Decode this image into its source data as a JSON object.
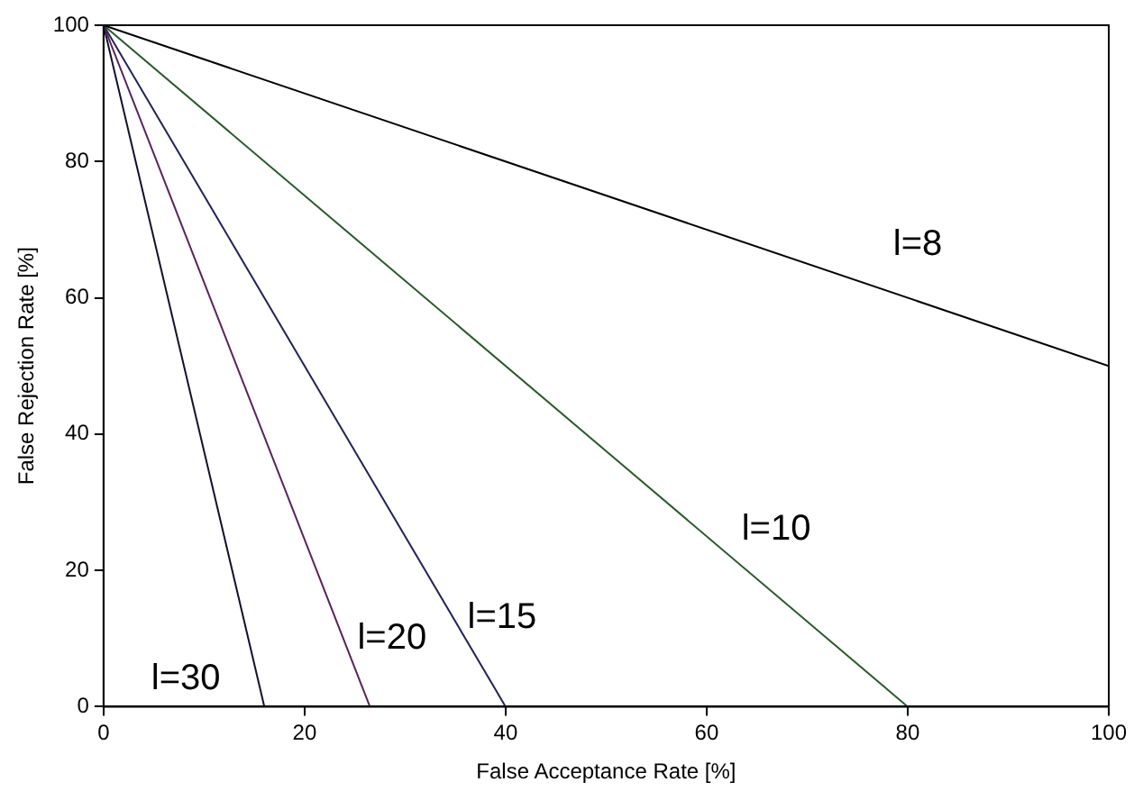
{
  "chart_data": {
    "type": "line",
    "xlabel": "False Acceptance Rate [%]",
    "ylabel": "False Rejection Rate [%]",
    "xlim": [
      0,
      100
    ],
    "ylim": [
      0,
      100
    ],
    "xticks": [
      0,
      20,
      40,
      60,
      80,
      100
    ],
    "yticks": [
      0,
      20,
      40,
      60,
      80,
      100
    ],
    "grid": false,
    "legend": false,
    "marker": "none",
    "line_style": "solid",
    "series": [
      {
        "name": "l=8",
        "color": "#000000",
        "x": [
          0,
          100
        ],
        "values": [
          100,
          50
        ]
      },
      {
        "name": "l=10",
        "color": "#2a5a2a",
        "x": [
          0,
          80
        ],
        "values": [
          100,
          0
        ]
      },
      {
        "name": "l=15",
        "color": "#22225a",
        "x": [
          0,
          40
        ],
        "values": [
          100,
          0
        ]
      },
      {
        "name": "l=20",
        "color": "#5a225a",
        "x": [
          0,
          26.5
        ],
        "values": [
          100,
          0
        ]
      },
      {
        "name": "l=30",
        "color": "#101030",
        "x": [
          0,
          16
        ],
        "values": [
          100,
          0
        ]
      }
    ]
  }
}
